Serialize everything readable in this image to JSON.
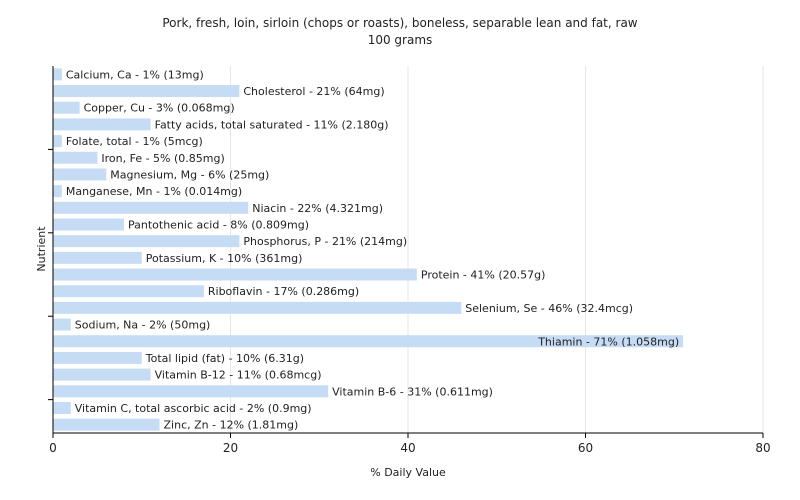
{
  "chart_data": {
    "type": "bar",
    "orientation": "horizontal",
    "title": "Pork, fresh, loin, sirloin (chops or roasts), boneless, separable lean and fat, raw",
    "subtitle": "100 grams",
    "xlabel": "% Daily Value",
    "ylabel": "Nutrient",
    "xlim": [
      0,
      80
    ],
    "xticks": [
      0,
      20,
      40,
      60,
      80
    ],
    "grid": true,
    "bar_color": "#c6dcf5",
    "categories": [
      "Calcium, Ca",
      "Cholesterol",
      "Copper, Cu",
      "Fatty acids, total saturated",
      "Folate, total",
      "Iron, Fe",
      "Magnesium, Mg",
      "Manganese, Mn",
      "Niacin",
      "Pantothenic acid",
      "Phosphorus, P",
      "Potassium, K",
      "Protein",
      "Riboflavin",
      "Selenium, Se",
      "Sodium, Na",
      "Thiamin",
      "Total lipid (fat)",
      "Vitamin B-12",
      "Vitamin B-6",
      "Vitamin C, total ascorbic acid",
      "Zinc, Zn"
    ],
    "values": [
      1,
      21,
      3,
      11,
      1,
      5,
      6,
      1,
      22,
      8,
      21,
      10,
      41,
      17,
      46,
      2,
      71,
      10,
      11,
      31,
      2,
      12
    ],
    "labels": [
      "Calcium, Ca - 1% (13mg)",
      "Cholesterol - 21% (64mg)",
      "Copper, Cu - 3% (0.068mg)",
      "Fatty acids, total saturated - 11% (2.180g)",
      "Folate, total - 1% (5mcg)",
      "Iron, Fe - 5% (0.85mg)",
      "Magnesium, Mg - 6% (25mg)",
      "Manganese, Mn - 1% (0.014mg)",
      "Niacin - 22% (4.321mg)",
      "Pantothenic acid - 8% (0.809mg)",
      "Phosphorus, P - 21% (214mg)",
      "Potassium, K - 10% (361mg)",
      "Protein - 41% (20.57g)",
      "Riboflavin - 17% (0.286mg)",
      "Selenium, Se - 46% (32.4mcg)",
      "Sodium, Na - 2% (50mg)",
      "Thiamin - 71% (1.058mg)",
      "Total lipid (fat) - 10% (6.31g)",
      "Vitamin B-12 - 11% (0.68mcg)",
      "Vitamin B-6 - 31% (0.611mg)",
      "Vitamin C, total ascorbic acid - 2% (0.9mg)",
      "Zinc, Zn - 12% (1.81mg)"
    ]
  }
}
